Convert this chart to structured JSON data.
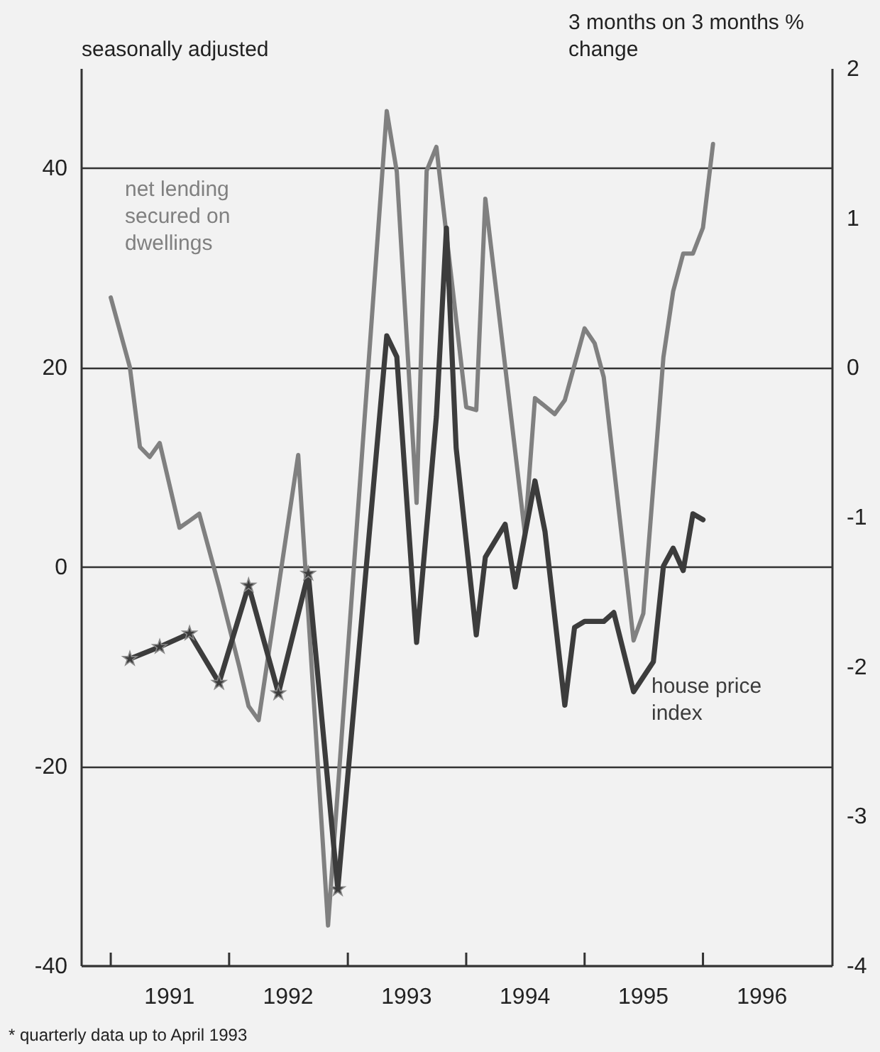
{
  "chart_data": {
    "type": "line",
    "ylabel": "seasonally adjusted",
    "y2label": "3 months on 3 months % change",
    "annotations": [
      "* quarterly data up to April 1993"
    ],
    "xlim": [
      "1990-10",
      "1997-02"
    ],
    "xticks": [
      {
        "value": "1991-01",
        "label": null
      },
      {
        "value": "1992-01",
        "label": null
      },
      {
        "value": "1993-01",
        "label": null
      },
      {
        "value": "1994-01",
        "label": null
      },
      {
        "value": "1995-01",
        "label": null
      },
      {
        "value": "1996-01",
        "label": null
      },
      {
        "value": "1991-07",
        "label": "1991"
      },
      {
        "value": "1992-07",
        "label": "1992"
      },
      {
        "value": "1993-07",
        "label": "1993"
      },
      {
        "value": "1994-07",
        "label": "1994"
      },
      {
        "value": "1995-07",
        "label": "1995"
      },
      {
        "value": "1996-07",
        "label": "1996"
      }
    ],
    "ylim": [
      -40,
      50
    ],
    "yticks": [
      -40,
      -20,
      0,
      20,
      40
    ],
    "y2lim": [
      -4,
      2
    ],
    "y2ticks": [
      -4,
      -3,
      -2,
      -1,
      0,
      1,
      2
    ],
    "grid": "y",
    "line_style": "solid",
    "series": [
      {
        "name": "net lending secured on dwellings",
        "color": "#808080",
        "marker": "none",
        "x": [
          "1991-01",
          "1991-03",
          "1991-04",
          "1991-05",
          "1991-06",
          "1991-08",
          "1991-09",
          "1991-10",
          "1991-12",
          "1992-02",
          "1992-03",
          "1992-04",
          "1992-08",
          "1992-11",
          "1993-05",
          "1993-06",
          "1993-08",
          "1993-09",
          "1993-10",
          "1994-01",
          "1994-02",
          "1994-03",
          "1994-07",
          "1994-08",
          "1994-10",
          "1994-11",
          "1995-01",
          "1995-02",
          "1995-03",
          "1995-06",
          "1995-07",
          "1995-09",
          "1995-10",
          "1995-11",
          "1995-12",
          "1996-01",
          "1996-02"
        ],
        "values": [
          27,
          20,
          12,
          11,
          12.4,
          3.9,
          4.6,
          5.3,
          -2,
          -10,
          -14,
          -15.4,
          11.2,
          -36,
          45.7,
          39.6,
          6.4,
          39.7,
          42.1,
          16,
          15.7,
          36.9,
          3.3,
          16.9,
          15.3,
          16.7,
          23.9,
          22.4,
          19,
          -7.4,
          -4.7,
          21,
          27.6,
          31.4,
          31.4,
          34,
          42.4
        ]
      },
      {
        "color": "#3c3c3c",
        "axis": "y2",
        "marker": "star",
        "x": [
          "1991-03",
          "1991-06",
          "1991-09",
          "1991-12",
          "1992-03",
          "1992-06",
          "1992-09",
          "1992-12"
        ],
        "values": [
          -1.95,
          -1.87,
          -1.78,
          -2.11,
          -1.46,
          -2.18,
          -1.38,
          -3.49
        ]
      },
      {
        "name": "house price index",
        "color": "#3c3c3c",
        "axis": "y2",
        "marker": "none",
        "x": [
          "1992-12",
          "1993-05",
          "1993-06",
          "1993-08",
          "1993-10",
          "1993-11",
          "1993-12",
          "1994-02",
          "1994-03",
          "1994-05",
          "1994-06",
          "1994-08",
          "1994-09",
          "1994-11",
          "1994-12",
          "1995-01",
          "1995-03",
          "1995-04",
          "1995-06",
          "1995-08",
          "1995-09",
          "1995-10",
          "1995-11",
          "1995-12",
          "1996-01"
        ],
        "values": [
          -3.49,
          0.21,
          0.07,
          -1.84,
          -0.33,
          0.93,
          -0.54,
          -1.79,
          -1.27,
          -1.05,
          -1.47,
          -0.76,
          -1.1,
          -2.26,
          -1.74,
          -1.7,
          -1.7,
          -1.64,
          -2.17,
          -1.97,
          -1.33,
          -1.21,
          -1.36,
          -0.98,
          -1.02
        ]
      }
    ]
  }
}
